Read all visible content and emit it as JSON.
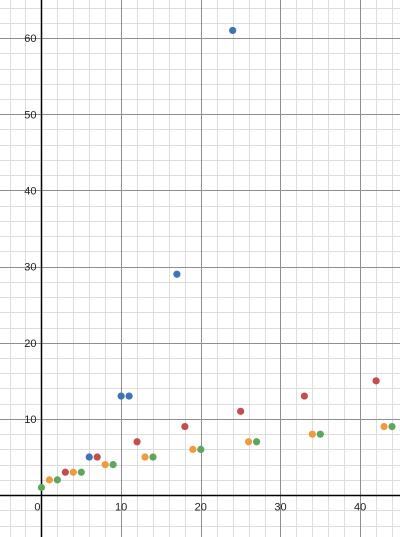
{
  "chart_data": {
    "type": "scatter",
    "title": "",
    "xlabel": "",
    "ylabel": "",
    "xlim": [
      -5.2,
      45
    ],
    "ylim": [
      -5.5,
      65
    ],
    "grid": true,
    "x_ticks": [
      0,
      10,
      20,
      30,
      40
    ],
    "y_ticks": [
      10,
      20,
      30,
      40,
      50,
      60
    ],
    "x_tick_labels": [
      "0",
      "10",
      "20",
      "30",
      "40"
    ],
    "y_tick_labels": [
      "10",
      "20",
      "30",
      "40",
      "50",
      "60"
    ],
    "series": [
      {
        "color": "#3f74b5",
        "points": [
          [
            6,
            5
          ],
          [
            10,
            13
          ],
          [
            11,
            13
          ],
          [
            17,
            29
          ],
          [
            24,
            61
          ]
        ]
      },
      {
        "color": "#c44e4e",
        "points": [
          [
            3,
            3
          ],
          [
            7,
            5
          ],
          [
            12,
            7
          ],
          [
            18,
            9
          ],
          [
            25,
            11
          ],
          [
            33,
            13
          ],
          [
            42,
            15
          ]
        ]
      },
      {
        "color": "#ef9a3c",
        "points": [
          [
            1,
            2
          ],
          [
            4,
            3
          ],
          [
            8,
            4
          ],
          [
            13,
            5
          ],
          [
            19,
            6
          ],
          [
            26,
            7
          ],
          [
            34,
            8
          ],
          [
            43,
            9
          ]
        ]
      },
      {
        "color": "#5ea65c",
        "points": [
          [
            0,
            1
          ],
          [
            2,
            2
          ],
          [
            5,
            3
          ],
          [
            9,
            4
          ],
          [
            14,
            5
          ],
          [
            20,
            6
          ],
          [
            27,
            7
          ],
          [
            35,
            8
          ],
          [
            44,
            9
          ]
        ]
      }
    ],
    "colors": {
      "major_grid": "#8e8e8e",
      "minor_grid": "#dddddd",
      "axis": "#000000"
    }
  }
}
